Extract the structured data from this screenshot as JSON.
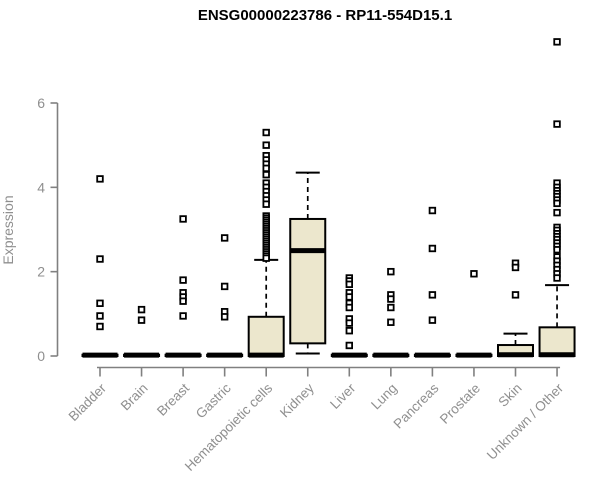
{
  "page": {
    "background": "#ffffff"
  },
  "chart_data": {
    "type": "boxplot",
    "title": "ENSG00000223786 - RP11-554D15.1",
    "ylabel": "Expression",
    "xlabel": "",
    "yticks": [
      0,
      2,
      4,
      6
    ],
    "ylim": [
      0,
      7.6
    ],
    "grid": false,
    "legend": false,
    "colors": {
      "box_fill": "#ece7cd",
      "box_stroke": "#000000",
      "axis": "#808080",
      "tick_text": "#8f8f8f",
      "title_text": "#000000",
      "outlier_fill": "#ffffff"
    },
    "categories": [
      "Bladder",
      "Brain",
      "Breast",
      "Gastric",
      "Hematopoietic cells",
      "Kidney",
      "Liver",
      "Lung",
      "Pancreas",
      "Prostate",
      "Skin",
      "Unknown / Other"
    ],
    "boxes": [
      {
        "category": "Bladder",
        "q1": 0,
        "median": 0.02,
        "q3": 0.03,
        "whisker_low": 0,
        "whisker_high": 0.03,
        "outliers": [
          4.2,
          2.3,
          1.25,
          0.95,
          0.7
        ]
      },
      {
        "category": "Brain",
        "q1": 0,
        "median": 0.02,
        "q3": 0.03,
        "whisker_low": 0,
        "whisker_high": 0.03,
        "outliers": [
          1.1,
          0.85
        ]
      },
      {
        "category": "Breast",
        "q1": 0,
        "median": 0.02,
        "q3": 0.03,
        "whisker_low": 0,
        "whisker_high": 0.03,
        "outliers": [
          3.25,
          1.8,
          1.5,
          1.4,
          1.3,
          0.95
        ]
      },
      {
        "category": "Gastric",
        "q1": 0,
        "median": 0.02,
        "q3": 0.03,
        "whisker_low": 0,
        "whisker_high": 0.03,
        "outliers": [
          2.8,
          1.65,
          1.05,
          0.93
        ]
      },
      {
        "category": "Hematopoietic cells",
        "q1": 0,
        "median": 0.02,
        "q3": 0.93,
        "whisker_low": 0,
        "whisker_high": 2.28,
        "outliers": [
          5.3,
          5.0,
          4.75,
          4.65,
          4.55,
          4.45,
          4.3,
          4.1,
          4.0,
          3.9,
          3.8,
          3.7,
          3.6,
          3.32,
          3.27,
          3.22,
          3.17,
          3.12,
          3.07,
          3.02,
          2.97,
          2.92,
          2.87,
          2.82,
          2.77,
          2.72,
          2.67,
          2.62,
          2.57,
          2.52,
          2.47,
          2.42,
          2.37,
          2.32
        ]
      },
      {
        "category": "Kidney",
        "q1": 0.3,
        "median": 2.5,
        "q3": 3.25,
        "whisker_low": 0.06,
        "whisker_high": 4.35,
        "outliers": []
      },
      {
        "category": "Liver",
        "q1": 0,
        "median": 0.02,
        "q3": 0.03,
        "whisker_low": 0,
        "whisker_high": 0.03,
        "outliers": [
          1.85,
          1.78,
          1.7,
          1.5,
          1.4,
          1.25,
          1.15,
          0.88,
          0.78,
          0.6,
          0.25
        ]
      },
      {
        "category": "Lung",
        "q1": 0,
        "median": 0.02,
        "q3": 0.03,
        "whisker_low": 0,
        "whisker_high": 0.03,
        "outliers": [
          2.0,
          1.45,
          1.35,
          1.15,
          0.8
        ]
      },
      {
        "category": "Pancreas",
        "q1": 0,
        "median": 0.02,
        "q3": 0.03,
        "whisker_low": 0,
        "whisker_high": 0.03,
        "outliers": [
          3.45,
          2.55,
          1.45,
          0.85
        ]
      },
      {
        "category": "Prostate",
        "q1": 0,
        "median": 0.02,
        "q3": 0.03,
        "whisker_low": 0,
        "whisker_high": 0.03,
        "outliers": [
          1.95
        ]
      },
      {
        "category": "Skin",
        "q1": 0,
        "median": 0.03,
        "q3": 0.26,
        "whisker_low": 0,
        "whisker_high": 0.53,
        "outliers": [
          2.2,
          2.1,
          1.45
        ]
      },
      {
        "category": "Unknown / Other",
        "q1": 0,
        "median": 0.03,
        "q3": 0.68,
        "whisker_low": 0,
        "whisker_high": 1.68,
        "outliers": [
          7.45,
          5.5,
          4.1,
          4.0,
          3.92,
          3.85,
          3.78,
          3.7,
          3.62,
          3.4,
          3.05,
          2.98,
          2.9,
          2.83,
          2.76,
          2.68,
          2.6,
          2.52,
          2.35,
          2.25,
          2.15,
          2.05,
          1.95,
          1.85
        ]
      }
    ]
  }
}
